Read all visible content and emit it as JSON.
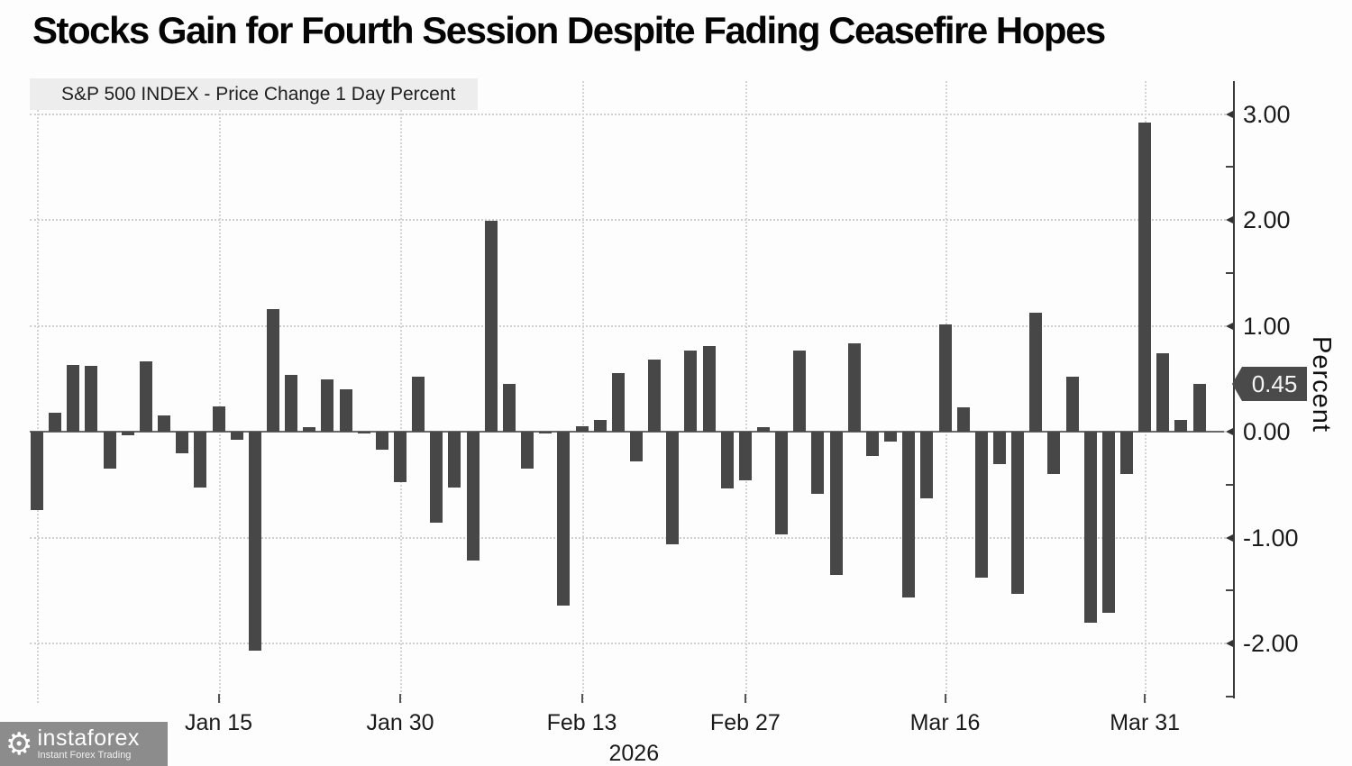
{
  "title": "Stocks Gain for Fourth Session Despite Fading Ceasefire Hopes",
  "legend": {
    "label": "S&P 500 INDEX - Price Change 1 Day Percent",
    "swatch_color": "#3d3d3d"
  },
  "y_axis": {
    "title": "Percent",
    "current_value": "0.45",
    "major_ticks": [
      {
        "value": 3.0,
        "label": "3.00"
      },
      {
        "value": 2.0,
        "label": "2.00"
      },
      {
        "value": 1.0,
        "label": "1.00"
      },
      {
        "value": 0.0,
        "label": "0.00"
      },
      {
        "value": -1.0,
        "label": "-1.00"
      },
      {
        "value": -2.0,
        "label": "-2.00"
      }
    ],
    "minor_tick_values": [
      2.5,
      1.5,
      -0.5,
      -1.5,
      -2.5
    ]
  },
  "x_axis": {
    "year": "2026",
    "ticks": [
      {
        "index": 10,
        "label": "Jan 15"
      },
      {
        "index": 20,
        "label": "Jan 30"
      },
      {
        "index": 30,
        "label": "Feb 13"
      },
      {
        "index": 39,
        "label": "Feb 27"
      },
      {
        "index": 50,
        "label": "Mar 16"
      },
      {
        "index": 61,
        "label": "Mar 31"
      }
    ],
    "unlabeled_gridline_indices": [
      0
    ]
  },
  "watermark": {
    "name": "instaforex",
    "tagline": "Instant Forex Trading",
    "gear_icon": "⚙"
  },
  "colors": {
    "bar": "#474747",
    "background": "#fdfdfd",
    "legend_bg": "#ededed",
    "badge_bg": "#4a4a4a",
    "badge_text": "#f5f5f5",
    "axis_line": "#3a3a3a",
    "grid": "#cfcfcf",
    "watermark_bg": "#8c8c8c"
  },
  "chart_data": {
    "type": "bar",
    "series_name": "S&P 500 INDEX - Price Change 1 Day Percent",
    "unit": "percent",
    "ylim": [
      -2.6,
      3.3
    ],
    "grid": true,
    "legend_position": "top-left",
    "y_axis_side": "right",
    "latest_value": 0.45,
    "x_tick_labels": [
      "Jan 15",
      "Jan 30",
      "Feb 13",
      "Feb 27",
      "Mar 16",
      "Mar 31"
    ],
    "x_tick_indices": [
      10,
      20,
      30,
      39,
      50,
      61
    ],
    "values": [
      -0.74,
      0.18,
      0.63,
      0.62,
      -0.35,
      -0.03,
      0.66,
      0.15,
      -0.2,
      -0.53,
      0.24,
      -0.08,
      -2.07,
      1.16,
      0.54,
      0.04,
      0.49,
      0.4,
      -0.02,
      -0.17,
      -0.48,
      0.52,
      -0.86,
      -0.53,
      -1.22,
      1.99,
      0.45,
      -0.35,
      -0.02,
      -1.64,
      0.05,
      0.11,
      0.55,
      -0.28,
      0.68,
      -1.06,
      0.77,
      0.81,
      -0.54,
      -0.46,
      0.04,
      -0.97,
      0.77,
      -0.59,
      -1.35,
      0.83,
      -0.23,
      -0.09,
      -1.57,
      -0.63,
      1.01,
      0.23,
      -1.38,
      -0.31,
      -1.53,
      1.12,
      -0.4,
      0.52,
      -1.8,
      -1.71,
      -0.4,
      2.92,
      0.74,
      0.11,
      0.45
    ]
  }
}
